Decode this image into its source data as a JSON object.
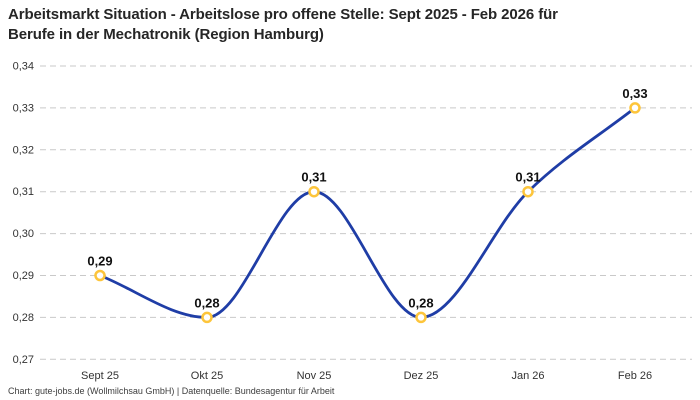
{
  "title": {
    "line1": "Arbeitsmarkt Situation - Arbeitslose pro offene Stelle: Sept 2025 - Feb 2026 für",
    "line2": "Berufe in der Mechatronik (Region Hamburg)"
  },
  "footer": "Chart: gute-jobs.de (Wollmilchsau GmbH) | Datenquelle: Bundesagentur für Arbeit",
  "chart_data": {
    "type": "line",
    "title": "Arbeitsmarkt Situation - Arbeitslose pro offene Stelle: Sept 2025 - Feb 2026 für Berufe in der Mechatronik (Region Hamburg)",
    "categories": [
      "Sept 25",
      "Okt 25",
      "Nov 25",
      "Dez 25",
      "Jan 26",
      "Feb 26"
    ],
    "values": [
      0.29,
      0.28,
      0.31,
      0.28,
      0.31,
      0.33
    ],
    "value_labels": [
      "0,29",
      "0,28",
      "0,31",
      "0,28",
      "0,31",
      "0,33"
    ],
    "y_ticks": [
      "0,34",
      "0,33",
      "0,32",
      "0,31",
      "0,30",
      "0,29",
      "0,28",
      "0,27"
    ],
    "y_tick_values": [
      0.34,
      0.33,
      0.32,
      0.31,
      0.3,
      0.29,
      0.28,
      0.27
    ],
    "ylim": [
      0.27,
      0.34
    ],
    "xlabel": "",
    "ylabel": "",
    "grid": "horizontal-dashed",
    "legend": "none",
    "curve": "monotone",
    "colors": {
      "line": "#1f3da6",
      "marker_ring": "#fdc53b",
      "marker_fill": "#ffffff",
      "grid": "#c9c9c9",
      "tick_text": "#333333",
      "data_label": "#111111",
      "title_text": "#262626",
      "footer_text": "#3d3d3d",
      "background": "#ffffff"
    }
  }
}
